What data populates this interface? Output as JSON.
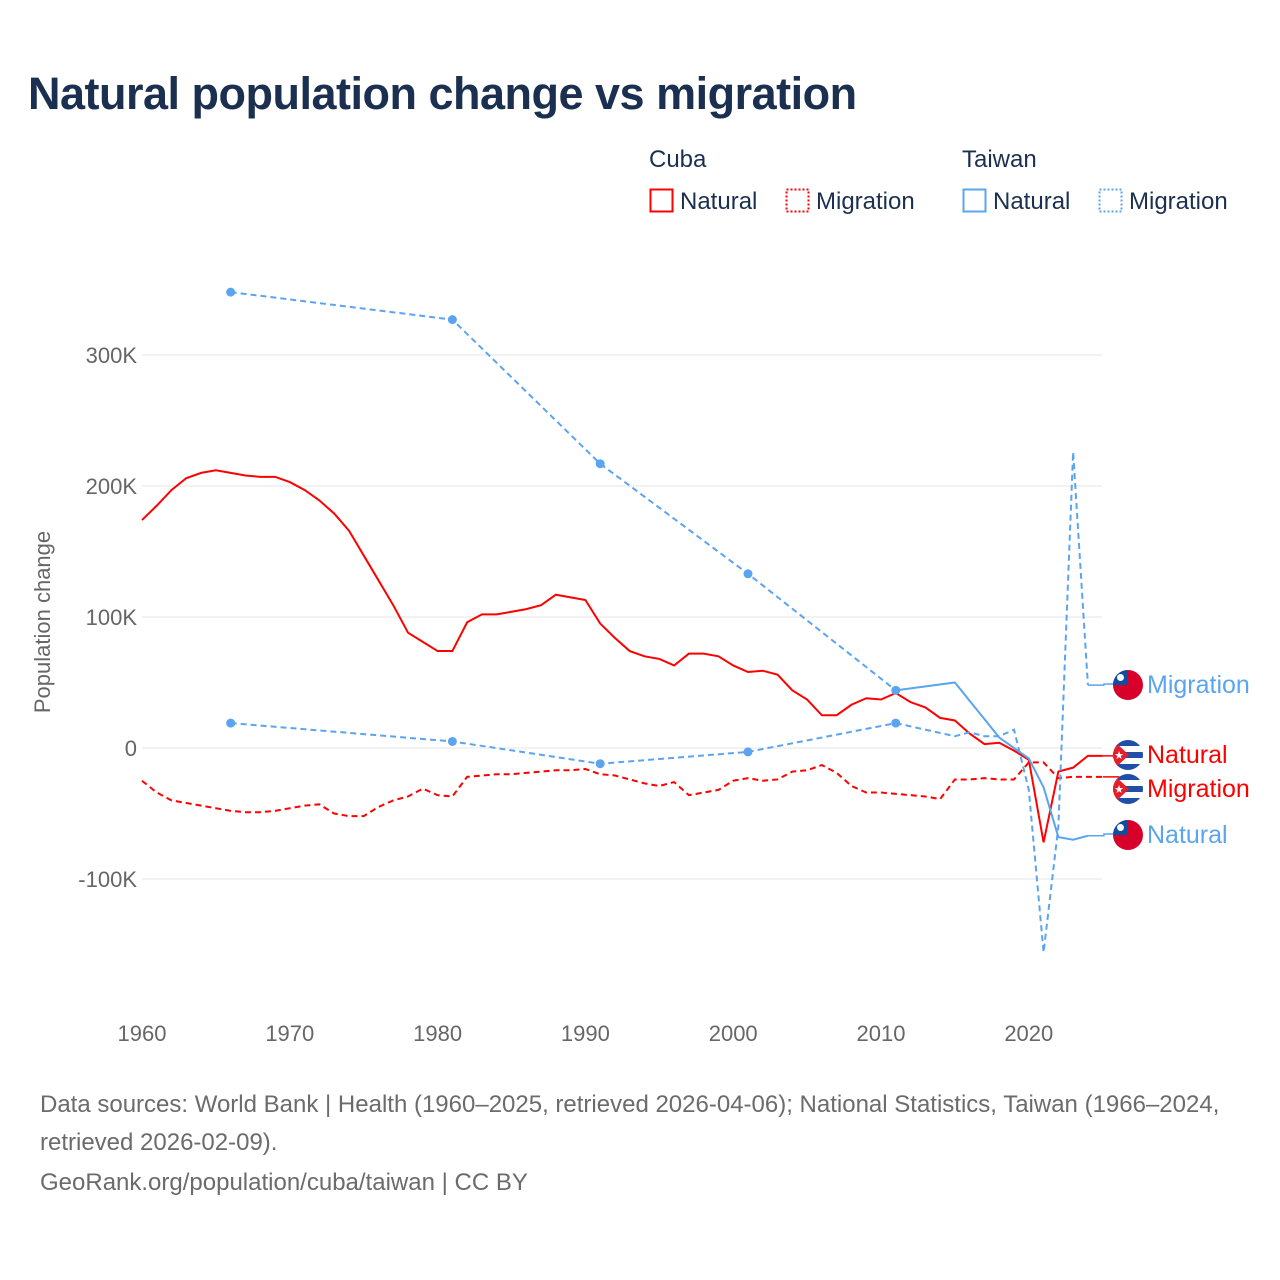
{
  "title": "Natural population change vs migration",
  "legend": {
    "groups": [
      {
        "name": "Cuba",
        "items": [
          {
            "label": "Natural",
            "style": "solid"
          },
          {
            "label": "Migration",
            "style": "dotted"
          }
        ],
        "color": "#ff0000"
      },
      {
        "name": "Taiwan",
        "items": [
          {
            "label": "Natural",
            "style": "solid"
          },
          {
            "label": "Migration",
            "style": "dotted"
          }
        ],
        "color": "#5ba4ef"
      }
    ]
  },
  "chart_data": {
    "type": "line",
    "title": "Natural population change vs migration",
    "xlabel": "",
    "ylabel": "Population change",
    "xlim": [
      1960,
      2025
    ],
    "ylim": [
      -160000,
      360000
    ],
    "xticks": [
      1960,
      1970,
      1980,
      1990,
      2000,
      2010,
      2020
    ],
    "yticks": [
      {
        "v": 300000,
        "label": "300K"
      },
      {
        "v": 200000,
        "label": "200K"
      },
      {
        "v": 100000,
        "label": "100K"
      },
      {
        "v": 0,
        "label": "0"
      },
      {
        "v": -100000,
        "label": "-100K"
      }
    ],
    "grid": true,
    "legend_placement": "top-right",
    "series": [
      {
        "name": "Cuba Natural",
        "country": "Cuba",
        "label": "Natural",
        "color": "#ff0000",
        "dash": false,
        "flag": "cuba",
        "start": 1960,
        "values": [
          174000,
          185000,
          197000,
          206000,
          210000,
          212000,
          210000,
          208000,
          207000,
          207000,
          203000,
          197000,
          189000,
          179000,
          166000,
          147000,
          128000,
          109000,
          88000,
          81000,
          74000,
          74000,
          96000,
          102000,
          102000,
          104000,
          106000,
          109000,
          117000,
          115000,
          113000,
          95000,
          84000,
          74000,
          70000,
          68000,
          63000,
          72000,
          72000,
          70000,
          63000,
          58000,
          59000,
          56000,
          44000,
          37000,
          25000,
          25000,
          33000,
          38000,
          37000,
          42000,
          35000,
          31000,
          23000,
          21000,
          11000,
          3000,
          4000,
          -2000,
          -9000,
          -72000,
          -18000,
          -15000,
          -6000,
          -6000
        ]
      },
      {
        "name": "Cuba Migration",
        "country": "Cuba",
        "label": "Migration",
        "color": "#ff0000",
        "dash": true,
        "flag": "cuba",
        "start": 1960,
        "values": [
          -25000,
          -34000,
          -40000,
          -42000,
          -44000,
          -46000,
          -48000,
          -49000,
          -49000,
          -48000,
          -46000,
          -44000,
          -43000,
          -50000,
          -52000,
          -52000,
          -45000,
          -40000,
          -37000,
          -31000,
          -36000,
          -37000,
          -22000,
          -21000,
          -20000,
          -20000,
          -19000,
          -18000,
          -17000,
          -17000,
          -16000,
          -20000,
          -21000,
          -24000,
          -27000,
          -29000,
          -26000,
          -36000,
          -34000,
          -32000,
          -25000,
          -23000,
          -25000,
          -24000,
          -18000,
          -17000,
          -13000,
          -19000,
          -29000,
          -34000,
          -34000,
          -35000,
          -36000,
          -37000,
          -39000,
          -24000,
          -24000,
          -23000,
          -24000,
          -24000,
          -11000,
          -11000,
          -23000,
          -22000,
          -22000,
          -22000
        ]
      },
      {
        "name": "Taiwan Natural",
        "country": "Taiwan",
        "label": "Natural",
        "color": "#5ba4ef",
        "dash": false,
        "flag": "taiwan",
        "points": [
          [
            1966,
            348000
          ],
          [
            1981,
            327000
          ],
          [
            1991,
            217000
          ],
          [
            2001,
            133000
          ],
          [
            2011,
            44000
          ],
          [
            2015,
            50000
          ],
          [
            2016,
            36000
          ],
          [
            2017,
            22000
          ],
          [
            2018,
            8000
          ],
          [
            2019,
            0
          ],
          [
            2020,
            -8000
          ],
          [
            2021,
            -30000
          ],
          [
            2022,
            -68000
          ],
          [
            2023,
            -70000
          ],
          [
            2024,
            -67000
          ]
        ],
        "markers": [
          1966,
          1981,
          1991,
          2001,
          2011
        ]
      },
      {
        "name": "Taiwan Migration",
        "country": "Taiwan",
        "label": "Migration",
        "color": "#5ba4ef",
        "dash": true,
        "flag": "taiwan",
        "points": [
          [
            1966,
            19000
          ],
          [
            1981,
            5000
          ],
          [
            1991,
            -12000
          ],
          [
            2001,
            -3000
          ],
          [
            2011,
            19000
          ],
          [
            2015,
            9000
          ],
          [
            2016,
            12000
          ],
          [
            2017,
            9000
          ],
          [
            2018,
            9000
          ],
          [
            2019,
            14000
          ],
          [
            2020,
            -32000
          ],
          [
            2021,
            -156000
          ],
          [
            2022,
            -60000
          ],
          [
            2023,
            226000
          ],
          [
            2024,
            48000
          ]
        ],
        "markers": [
          1966,
          1981,
          1991,
          2001,
          2011
        ]
      }
    ],
    "end_labels": [
      {
        "series": "Taiwan Migration",
        "text": "Migration"
      },
      {
        "series": "Cuba Natural",
        "text": "Natural"
      },
      {
        "series": "Cuba Migration",
        "text": "Migration"
      },
      {
        "series": "Taiwan Natural",
        "text": "Natural"
      }
    ]
  },
  "footer": {
    "sources": "Data sources: World Bank | Health (1960–2025, retrieved 2026-04-06); National Statistics, Taiwan (1966–2024, retrieved 2026-02-09).",
    "credit": "GeoRank.org/population/cuba/taiwan | CC BY"
  }
}
